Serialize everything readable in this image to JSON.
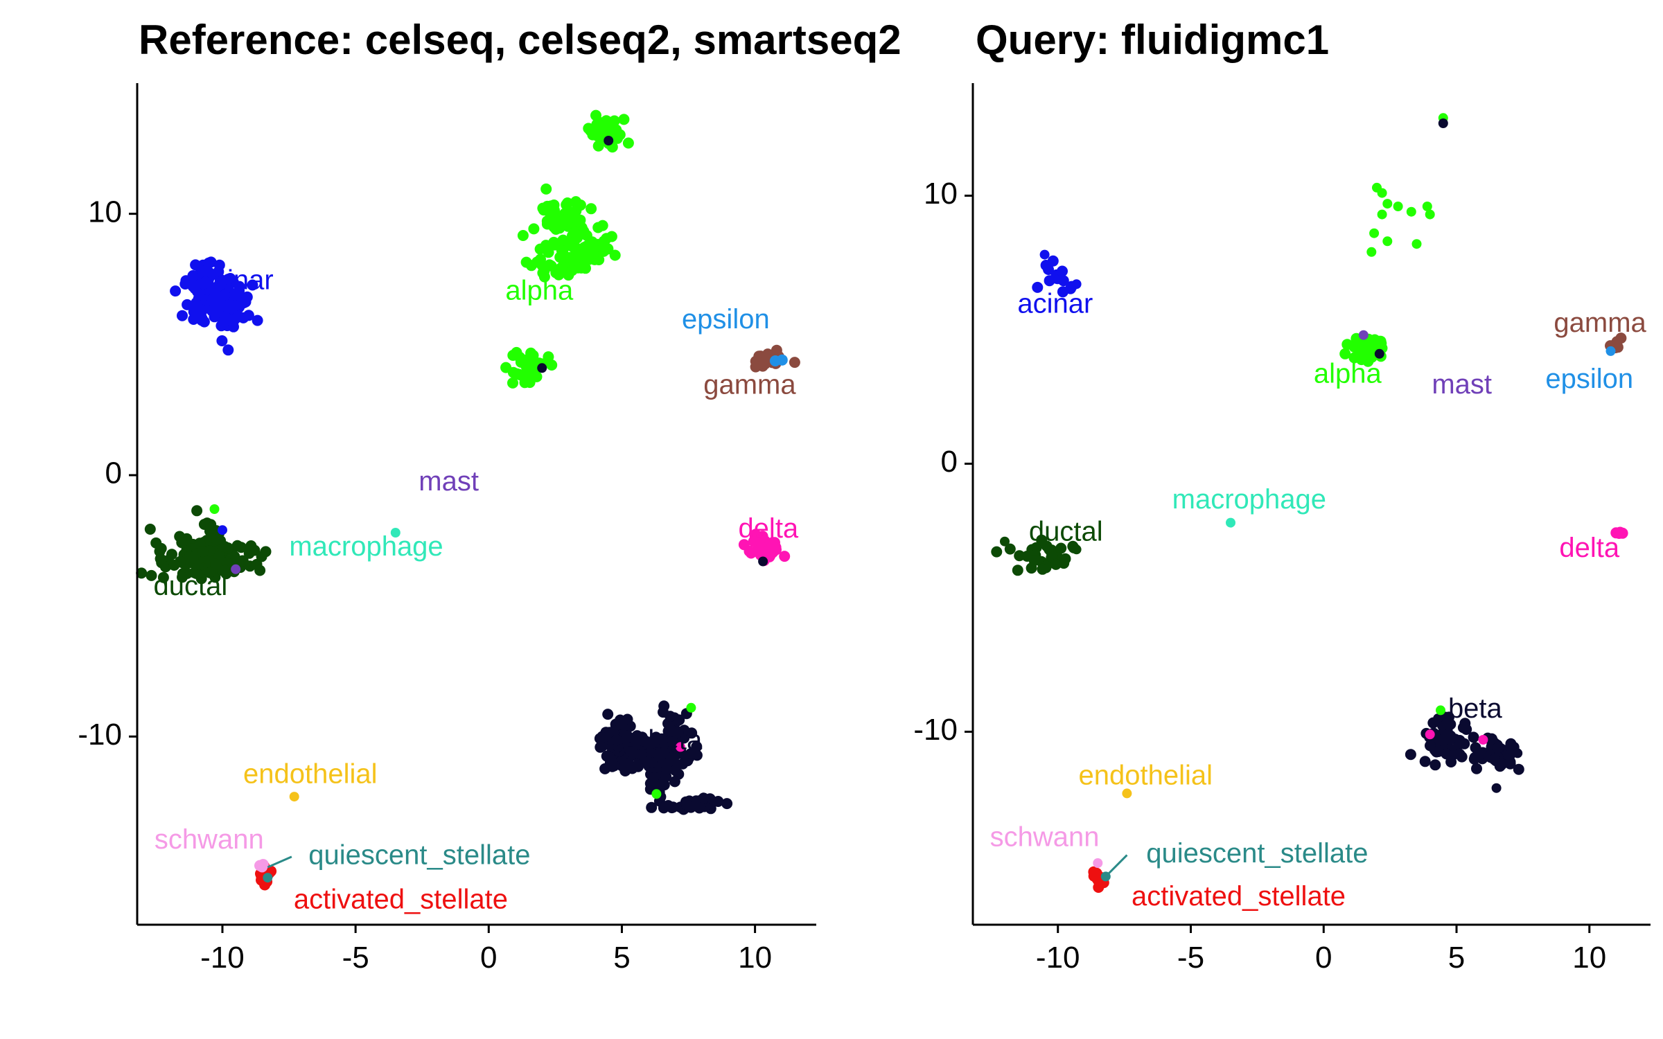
{
  "colors": {
    "acinar": "#1010EE",
    "alpha": "#22FF00",
    "ductal": "#0C4A05",
    "beta": "#0A0A30",
    "delta": "#FF14B4",
    "gamma": "#8B4A3F",
    "epsilon": "#2090E6",
    "mast": "#7040B8",
    "macrophage": "#30E8B8",
    "endothelial": "#F5C21A",
    "schwann": "#F59AE6",
    "quiescent_stellate": "#2A8A88",
    "activated_stellate": "#EE1010"
  },
  "chart_data": [
    {
      "type": "scatter",
      "title": "Reference: celseq, celseq2, smartseq2",
      "xlabel": "",
      "ylabel": "",
      "xlim": [
        -13.2,
        12.3
      ],
      "ylim": [
        -17.2,
        15
      ],
      "xticks": [
        -10,
        -5,
        0,
        5,
        10
      ],
      "yticks": [
        -10,
        0,
        10
      ],
      "grid": false,
      "labels": [
        {
          "text": "acinar",
          "x": -9.5,
          "y": 7.4,
          "cluster": "acinar"
        },
        {
          "text": "alpha",
          "x": 1.9,
          "y": 7.0,
          "cluster": "alpha"
        },
        {
          "text": "epsilon",
          "x": 8.9,
          "y": 5.9,
          "cluster": "epsilon"
        },
        {
          "text": "gamma",
          "x": 9.8,
          "y": 3.4,
          "cluster": "gamma"
        },
        {
          "text": "mast",
          "x": -1.5,
          "y": -0.3,
          "cluster": "mast"
        },
        {
          "text": "delta",
          "x": 10.5,
          "y": -2.1,
          "cluster": "delta"
        },
        {
          "text": "macrophage",
          "x": -4.6,
          "y": -2.8,
          "cluster": "macrophage"
        },
        {
          "text": "ductal",
          "x": -11.2,
          "y": -4.3,
          "cluster": "ductal"
        },
        {
          "text": "beta",
          "x": 7.0,
          "y": -10.2,
          "cluster": "beta"
        },
        {
          "text": "endothelial",
          "x": -6.7,
          "y": -11.5,
          "cluster": "endothelial"
        },
        {
          "text": "schwann",
          "x": -10.5,
          "y": -14.0,
          "cluster": "schwann"
        },
        {
          "text": "quiescent_stellate",
          "x": -2.6,
          "y": -14.6,
          "cluster": "quiescent_stellate"
        },
        {
          "text": "activated_stellate",
          "x": -3.3,
          "y": -16.3,
          "cluster": "activated_stellate"
        }
      ],
      "leader_lines": [
        {
          "cluster": "quiescent_stellate",
          "x1": -7.4,
          "y1": -14.6,
          "x2": -8.3,
          "y2": -15.0
        }
      ],
      "clusters": [
        {
          "cluster": "acinar",
          "cx": -10.3,
          "cy": 6.6,
          "sx": 0.55,
          "sy": 0.5,
          "n": 120
        },
        {
          "cluster": "acinar",
          "cx": -10.6,
          "cy": 7.6,
          "sx": 0.3,
          "sy": 0.25,
          "n": 18
        },
        {
          "cluster": "alpha",
          "cx": 4.4,
          "cy": 13.2,
          "sx": 0.35,
          "sy": 0.22,
          "n": 60
        },
        {
          "cluster": "alpha",
          "cx": 2.9,
          "cy": 9.8,
          "sx": 0.55,
          "sy": 0.45,
          "n": 60
        },
        {
          "cluster": "alpha",
          "cx": 3.6,
          "cy": 8.8,
          "sx": 0.55,
          "sy": 0.35,
          "n": 55
        },
        {
          "cluster": "alpha",
          "cx": 2.6,
          "cy": 8.0,
          "sx": 0.45,
          "sy": 0.25,
          "n": 30
        },
        {
          "cluster": "alpha",
          "cx": 1.5,
          "cy": 4.1,
          "sx": 0.4,
          "sy": 0.3,
          "n": 35
        },
        {
          "cluster": "gamma",
          "cx": 10.6,
          "cy": 4.4,
          "sx": 0.3,
          "sy": 0.15,
          "n": 30
        },
        {
          "cluster": "epsilon",
          "cx": 10.8,
          "cy": 4.3,
          "sx": 0.08,
          "sy": 0.08,
          "n": 2
        },
        {
          "cluster": "delta",
          "cx": 10.5,
          "cy": -2.9,
          "sx": 0.3,
          "sy": 0.2,
          "n": 35
        },
        {
          "cluster": "ductal",
          "cx": -10.6,
          "cy": -3.2,
          "sx": 0.9,
          "sy": 0.35,
          "n": 150
        },
        {
          "cluster": "ductal",
          "cx": -10.3,
          "cy": -2.1,
          "sx": 0.25,
          "sy": 0.35,
          "n": 12
        },
        {
          "cluster": "beta",
          "cx": 4.8,
          "cy": -10.2,
          "sx": 0.35,
          "sy": 0.45,
          "n": 80
        },
        {
          "cluster": "beta",
          "cx": 6.3,
          "cy": -10.6,
          "sx": 0.6,
          "sy": 0.45,
          "n": 90
        },
        {
          "cluster": "beta",
          "cx": 6.4,
          "cy": -11.5,
          "sx": 0.25,
          "sy": 0.55,
          "n": 40
        },
        {
          "cluster": "beta",
          "cx": 7.1,
          "cy": -9.9,
          "sx": 0.35,
          "sy": 0.5,
          "n": 30
        },
        {
          "cluster": "beta",
          "cx": 7.6,
          "cy": -12.6,
          "sx": 0.45,
          "sy": 0.12,
          "n": 30
        },
        {
          "cluster": "activated_stellate",
          "cx": -8.4,
          "cy": -15.3,
          "sx": 0.15,
          "sy": 0.2,
          "n": 16
        },
        {
          "cluster": "schwann",
          "cx": -8.5,
          "cy": -14.9,
          "sx": 0.05,
          "sy": 0.05,
          "n": 3
        }
      ],
      "points": [
        {
          "cluster": "macrophage",
          "x": -3.5,
          "y": -2.2
        },
        {
          "cluster": "endothelial",
          "x": -7.3,
          "y": -12.3
        },
        {
          "cluster": "alpha",
          "x": 7.6,
          "y": -8.9
        },
        {
          "cluster": "alpha",
          "x": 6.3,
          "y": -12.2
        },
        {
          "cluster": "alpha",
          "x": -10.3,
          "y": -1.3
        },
        {
          "cluster": "acinar",
          "x": -10.0,
          "y": -2.1
        },
        {
          "cluster": "mast",
          "x": -9.5,
          "y": -3.6
        },
        {
          "cluster": "beta",
          "x": 4.5,
          "y": 12.8
        },
        {
          "cluster": "beta",
          "x": 2.0,
          "y": 4.1
        },
        {
          "cluster": "beta",
          "x": 10.3,
          "y": -3.3
        },
        {
          "cluster": "quiescent_stellate",
          "x": -8.3,
          "y": -15.4
        },
        {
          "cluster": "delta",
          "x": 7.2,
          "y": -10.4
        }
      ]
    },
    {
      "type": "scatter",
      "title": "Query: fluidigmc1",
      "xlabel": "",
      "ylabel": "",
      "xlim": [
        -13.2,
        12.3
      ],
      "ylim": [
        -17.2,
        14.2
      ],
      "xticks": [
        -10,
        -5,
        0,
        5,
        10
      ],
      "yticks": [
        -10,
        0,
        10
      ],
      "grid": false,
      "labels": [
        {
          "text": "acinar",
          "x": -10.1,
          "y": 5.9,
          "cluster": "acinar"
        },
        {
          "text": "gamma",
          "x": 10.4,
          "y": 5.2,
          "cluster": "gamma"
        },
        {
          "text": "alpha",
          "x": 0.9,
          "y": 3.3,
          "cluster": "alpha"
        },
        {
          "text": "mast",
          "x": 5.2,
          "y": 2.9,
          "cluster": "mast"
        },
        {
          "text": "epsilon",
          "x": 10.0,
          "y": 3.1,
          "cluster": "epsilon"
        },
        {
          "text": "macrophage",
          "x": -2.8,
          "y": -1.4,
          "cluster": "macrophage"
        },
        {
          "text": "ductal",
          "x": -9.7,
          "y": -2.6,
          "cluster": "ductal"
        },
        {
          "text": "delta",
          "x": 10.0,
          "y": -3.2,
          "cluster": "delta"
        },
        {
          "text": "beta",
          "x": 5.7,
          "y": -9.2,
          "cluster": "beta"
        },
        {
          "text": "endothelial",
          "x": -6.7,
          "y": -11.7,
          "cluster": "endothelial"
        },
        {
          "text": "schwann",
          "x": -10.5,
          "y": -14.0,
          "cluster": "schwann"
        },
        {
          "text": "quiescent_stellate",
          "x": -2.5,
          "y": -14.6,
          "cluster": "quiescent_stellate"
        },
        {
          "text": "activated_stellate",
          "x": -3.2,
          "y": -16.2,
          "cluster": "activated_stellate"
        }
      ],
      "leader_lines": [
        {
          "cluster": "quiescent_stellate",
          "x1": -7.4,
          "y1": -14.6,
          "x2": -8.2,
          "y2": -15.4
        }
      ],
      "clusters": [
        {
          "cluster": "acinar",
          "cx": -10.1,
          "cy": 7.0,
          "sx": 0.35,
          "sy": 0.35,
          "n": 12
        },
        {
          "cluster": "alpha",
          "cx": 1.6,
          "cy": 4.3,
          "sx": 0.35,
          "sy": 0.25,
          "n": 40
        },
        {
          "cluster": "gamma",
          "cx": 11.0,
          "cy": 4.5,
          "sx": 0.1,
          "sy": 0.1,
          "n": 6
        },
        {
          "cluster": "delta",
          "cx": 10.8,
          "cy": -2.6,
          "sx": 0.2,
          "sy": 0.05,
          "n": 4
        },
        {
          "cluster": "ductal",
          "cx": -10.4,
          "cy": -3.5,
          "sx": 0.55,
          "sy": 0.25,
          "n": 30
        },
        {
          "cluster": "beta",
          "cx": 4.6,
          "cy": -10.3,
          "sx": 0.4,
          "sy": 0.35,
          "n": 55
        },
        {
          "cluster": "beta",
          "cx": 6.3,
          "cy": -10.8,
          "sx": 0.55,
          "sy": 0.25,
          "n": 45
        },
        {
          "cluster": "activated_stellate",
          "cx": -8.5,
          "cy": -15.4,
          "sx": 0.12,
          "sy": 0.15,
          "n": 8
        }
      ],
      "points": [
        {
          "cluster": "alpha",
          "x": 4.5,
          "y": 12.9
        },
        {
          "cluster": "beta",
          "x": 4.5,
          "y": 12.7
        },
        {
          "cluster": "alpha",
          "x": 2.0,
          "y": 10.3
        },
        {
          "cluster": "alpha",
          "x": 2.2,
          "y": 10.1
        },
        {
          "cluster": "alpha",
          "x": 2.4,
          "y": 9.7
        },
        {
          "cluster": "alpha",
          "x": 2.8,
          "y": 9.6
        },
        {
          "cluster": "alpha",
          "x": 2.2,
          "y": 9.3
        },
        {
          "cluster": "alpha",
          "x": 3.3,
          "y": 9.4
        },
        {
          "cluster": "alpha",
          "x": 3.9,
          "y": 9.6
        },
        {
          "cluster": "alpha",
          "x": 4.0,
          "y": 9.3
        },
        {
          "cluster": "alpha",
          "x": 1.9,
          "y": 8.6
        },
        {
          "cluster": "alpha",
          "x": 2.4,
          "y": 8.3
        },
        {
          "cluster": "alpha",
          "x": 1.8,
          "y": 7.9
        },
        {
          "cluster": "alpha",
          "x": 3.5,
          "y": 8.2
        },
        {
          "cluster": "mast",
          "x": 1.5,
          "y": 4.8
        },
        {
          "cluster": "beta",
          "x": 2.1,
          "y": 4.1
        },
        {
          "cluster": "epsilon",
          "x": 10.8,
          "y": 4.2
        },
        {
          "cluster": "ductal",
          "x": -12.0,
          "y": -2.9
        },
        {
          "cluster": "ductal",
          "x": -9.3,
          "y": -3.2
        },
        {
          "cluster": "macrophage",
          "x": -3.5,
          "y": -2.2
        },
        {
          "cluster": "endothelial",
          "x": -7.4,
          "y": -12.3
        },
        {
          "cluster": "acinar",
          "x": -10.5,
          "y": 7.8
        },
        {
          "cluster": "acinar",
          "x": -9.3,
          "y": 6.7
        },
        {
          "cluster": "beta",
          "x": 6.5,
          "y": -12.1
        },
        {
          "cluster": "beta",
          "x": 7.3,
          "y": -10.8
        },
        {
          "cluster": "beta",
          "x": 4.3,
          "y": -9.5
        },
        {
          "cluster": "alpha",
          "x": 4.4,
          "y": -9.2
        },
        {
          "cluster": "delta",
          "x": 4.0,
          "y": -10.1
        },
        {
          "cluster": "delta",
          "x": 6.0,
          "y": -10.3
        },
        {
          "cluster": "schwann",
          "x": -8.5,
          "y": -14.9
        },
        {
          "cluster": "quiescent_stellate",
          "x": -8.2,
          "y": -15.4
        }
      ]
    }
  ]
}
